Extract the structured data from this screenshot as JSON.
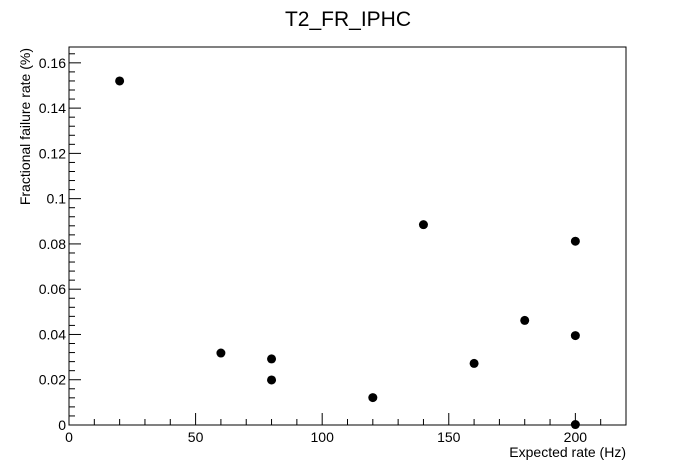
{
  "chart_data": {
    "type": "scatter",
    "title": "T2_FR_IPHC",
    "xlabel": "Expected rate (Hz)",
    "ylabel": "Fractional failure rate (%)",
    "xlim": [
      0,
      220
    ],
    "ylim": [
      0,
      0.167
    ],
    "x_ticks": [
      0,
      50,
      100,
      150,
      200
    ],
    "x_tick_labels": [
      "0",
      "50",
      "100",
      "150",
      "200"
    ],
    "y_ticks": [
      0,
      0.02,
      0.04,
      0.06,
      0.08,
      0.1,
      0.12,
      0.14,
      0.16
    ],
    "y_tick_labels": [
      "0",
      "0.02",
      "0.04",
      "0.06",
      "0.08",
      "0.1",
      "0.12",
      "0.14",
      "0.16"
    ],
    "grid": false,
    "marker_color": "#000000",
    "points": [
      {
        "x": 20,
        "y": 0.152
      },
      {
        "x": 60,
        "y": 0.0318
      },
      {
        "x": 80,
        "y": 0.0292
      },
      {
        "x": 80,
        "y": 0.0199
      },
      {
        "x": 120,
        "y": 0.0121
      },
      {
        "x": 140,
        "y": 0.0885
      },
      {
        "x": 160,
        "y": 0.0272
      },
      {
        "x": 180,
        "y": 0.0462
      },
      {
        "x": 200,
        "y": 0.0812
      },
      {
        "x": 200,
        "y": 0.0395
      },
      {
        "x": 200,
        "y": 0.0002
      }
    ]
  }
}
